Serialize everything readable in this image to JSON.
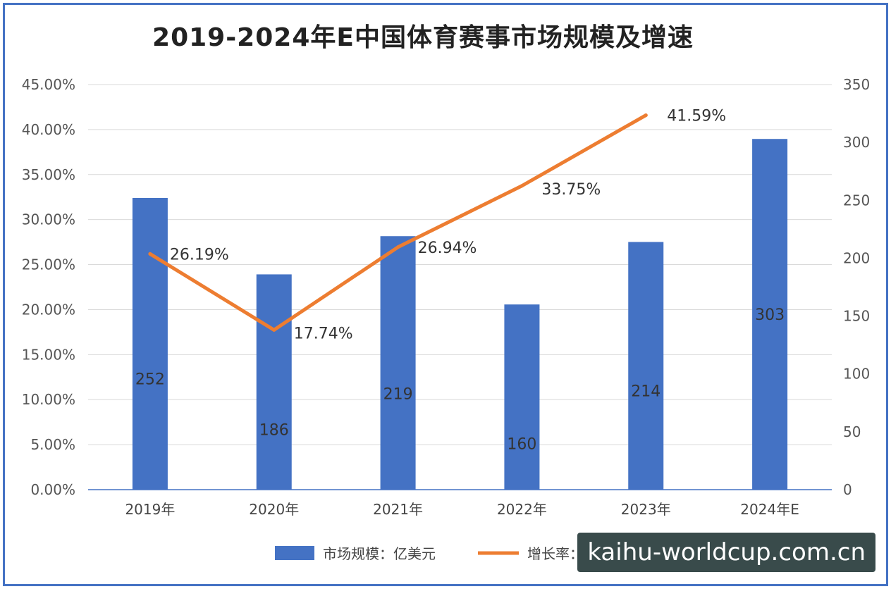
{
  "title": "2019-2024年E中国体育赛事市场规模及增速",
  "watermark": "kaihu-worldcup.com.cn",
  "chart_data": {
    "type": "bar",
    "categories": [
      "2019年",
      "2020年",
      "2021年",
      "2022年",
      "2023年",
      "2024年E"
    ],
    "series": [
      {
        "name": "市场规模：亿美元",
        "type": "bar",
        "axis": "right",
        "values": [
          252,
          186,
          219,
          160,
          214,
          303
        ],
        "labels": [
          "252",
          "186",
          "219",
          "160",
          "214",
          "303"
        ],
        "color": "#4472c4"
      },
      {
        "name": "增长率：%",
        "type": "line",
        "axis": "left",
        "values": [
          26.19,
          17.74,
          26.94,
          33.75,
          41.59,
          null
        ],
        "labels": [
          "26.19%",
          "17.74%",
          "26.94%",
          "33.75%",
          "41.59%",
          ""
        ],
        "color": "#ed7d31"
      }
    ],
    "y_left": {
      "ylim": [
        0,
        45
      ],
      "ticks": [
        0,
        5,
        10,
        15,
        20,
        25,
        30,
        35,
        40,
        45
      ],
      "tick_labels": [
        "0.00%",
        "5.00%",
        "10.00%",
        "15.00%",
        "20.00%",
        "25.00%",
        "30.00%",
        "35.00%",
        "40.00%",
        "45.00%"
      ]
    },
    "y_right": {
      "ylim": [
        0,
        350
      ],
      "ticks": [
        0,
        50,
        100,
        150,
        200,
        250,
        300,
        350
      ],
      "tick_labels": [
        "0",
        "50",
        "100",
        "150",
        "200",
        "250",
        "300",
        "350"
      ]
    },
    "grid": true,
    "legend_position": "bottom",
    "legend": [
      "市场规模：亿美元",
      "增长率："
    ]
  }
}
